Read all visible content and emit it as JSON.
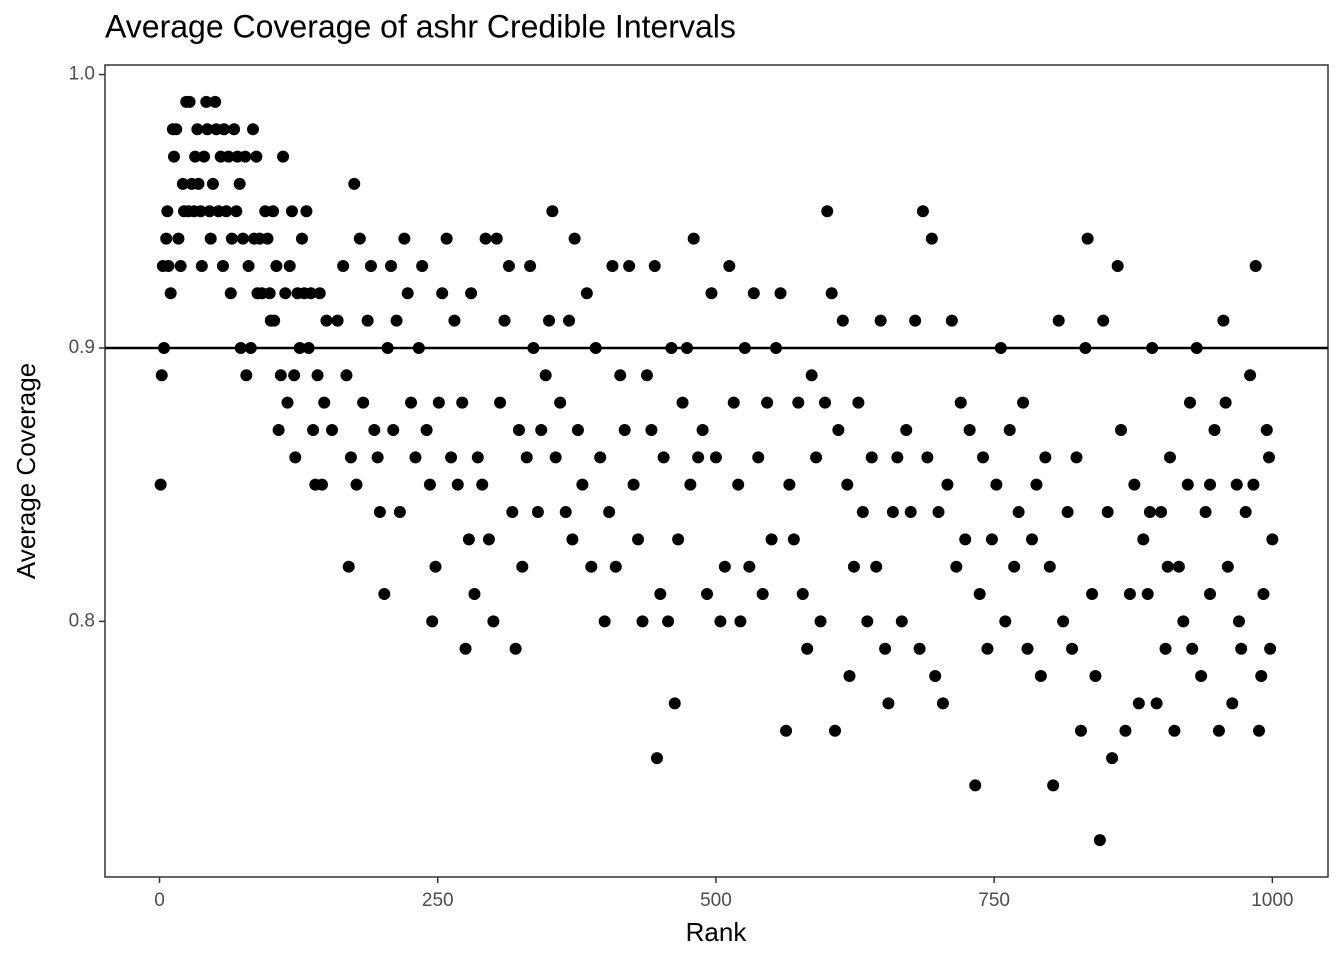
{
  "chart_data": {
    "type": "scatter",
    "title": "Average Coverage of ashr Credible Intervals",
    "x_label": "Rank",
    "y_label": "Average Coverage",
    "color": "#000000",
    "hline": 0.9,
    "xlim": [
      -49,
      1050
    ],
    "ylim": [
      0.7065,
      1.0035
    ],
    "xticks": [
      0,
      250,
      500,
      750,
      1000
    ],
    "yticks": [
      0.8,
      0.9,
      {
        "value": 1,
        "label": "1.0"
      }
    ],
    "x": [
      1,
      2,
      3,
      4,
      6,
      7,
      8,
      10,
      12,
      13,
      15,
      17,
      19,
      21,
      22,
      24,
      26,
      27,
      29,
      31,
      32,
      34,
      35,
      37,
      38,
      40,
      42,
      43,
      45,
      46,
      48,
      50,
      51,
      53,
      55,
      57,
      58,
      60,
      62,
      64,
      65,
      67,
      69,
      70,
      72,
      73,
      75,
      77,
      78,
      80,
      82,
      84,
      85,
      87,
      88,
      90,
      92,
      95,
      97,
      99,
      100,
      102,
      103,
      105,
      107,
      109,
      111,
      113,
      115,
      117,
      119,
      121,
      122,
      124,
      126,
      128,
      130,
      132,
      134,
      136,
      138,
      140,
      142,
      144,
      146,
      148,
      150,
      155,
      160,
      165,
      168,
      170,
      172,
      175,
      177,
      180,
      183,
      187,
      190,
      193,
      196,
      198,
      202,
      205,
      208,
      210,
      213,
      216,
      220,
      223,
      226,
      230,
      233,
      236,
      240,
      243,
      245,
      248,
      251,
      254,
      258,
      262,
      265,
      268,
      272,
      275,
      278,
      280,
      283,
      286,
      290,
      293,
      296,
      300,
      303,
      306,
      310,
      314,
      317,
      320,
      323,
      326,
      330,
      333,
      336,
      340,
      343,
      347,
      350,
      353,
      356,
      360,
      365,
      368,
      371,
      373,
      376,
      380,
      384,
      388,
      392,
      396,
      400,
      404,
      407,
      410,
      414,
      418,
      422,
      426,
      430,
      434,
      438,
      442,
      445,
      447,
      450,
      453,
      457,
      460,
      463,
      466,
      470,
      474,
      477,
      480,
      484,
      488,
      492,
      496,
      500,
      504,
      508,
      512,
      516,
      520,
      522,
      526,
      530,
      534,
      538,
      542,
      546,
      550,
      554,
      558,
      563,
      566,
      570,
      574,
      578,
      582,
      586,
      590,
      594,
      598,
      600,
      604,
      607,
      610,
      614,
      618,
      620,
      624,
      628,
      632,
      636,
      640,
      644,
      648,
      652,
      655,
      659,
      663,
      667,
      671,
      675,
      679,
      683,
      686,
      690,
      694,
      697,
      700,
      704,
      708,
      712,
      716,
      720,
      724,
      728,
      733,
      737,
      740,
      744,
      748,
      752,
      756,
      760,
      764,
      768,
      772,
      776,
      780,
      784,
      788,
      792,
      796,
      800,
      803,
      808,
      812,
      816,
      820,
      824,
      828,
      832,
      834,
      838,
      841,
      845,
      848,
      852,
      856,
      861,
      864,
      868,
      872,
      876,
      880,
      884,
      888,
      892,
      896,
      900,
      904,
      908,
      912,
      916,
      920,
      924,
      928,
      932,
      936,
      940,
      944,
      948,
      952,
      956,
      960,
      964,
      968,
      972,
      976,
      980,
      985,
      988,
      992,
      995,
      998,
      1000,
      997,
      990,
      983,
      970,
      958,
      944,
      926,
      906,
      890
    ],
    "values": [
      0.85,
      0.89,
      0.93,
      0.9,
      0.94,
      0.95,
      0.93,
      0.92,
      0.98,
      0.97,
      0.98,
      0.94,
      0.93,
      0.96,
      0.95,
      0.99,
      0.95,
      0.99,
      0.96,
      0.95,
      0.97,
      0.98,
      0.96,
      0.95,
      0.93,
      0.97,
      0.99,
      0.98,
      0.95,
      0.94,
      0.96,
      0.99,
      0.98,
      0.95,
      0.97,
      0.93,
      0.98,
      0.95,
      0.97,
      0.92,
      0.94,
      0.98,
      0.95,
      0.97,
      0.96,
      0.9,
      0.94,
      0.97,
      0.89,
      0.93,
      0.9,
      0.98,
      0.94,
      0.97,
      0.92,
      0.94,
      0.92,
      0.95,
      0.94,
      0.92,
      0.91,
      0.95,
      0.91,
      0.93,
      0.87,
      0.89,
      0.97,
      0.92,
      0.88,
      0.93,
      0.95,
      0.89,
      0.86,
      0.92,
      0.9,
      0.94,
      0.92,
      0.95,
      0.9,
      0.92,
      0.87,
      0.85,
      0.89,
      0.92,
      0.85,
      0.88,
      0.91,
      0.87,
      0.91,
      0.93,
      0.89,
      0.82,
      0.86,
      0.96,
      0.85,
      0.94,
      0.88,
      0.91,
      0.93,
      0.87,
      0.86,
      0.84,
      0.81,
      0.9,
      0.93,
      0.87,
      0.91,
      0.84,
      0.94,
      0.92,
      0.88,
      0.86,
      0.9,
      0.93,
      0.87,
      0.85,
      0.8,
      0.82,
      0.88,
      0.92,
      0.94,
      0.86,
      0.91,
      0.85,
      0.88,
      0.79,
      0.83,
      0.92,
      0.81,
      0.86,
      0.85,
      0.94,
      0.83,
      0.8,
      0.94,
      0.88,
      0.91,
      0.93,
      0.84,
      0.79,
      0.87,
      0.82,
      0.86,
      0.93,
      0.9,
      0.84,
      0.87,
      0.89,
      0.91,
      0.95,
      0.86,
      0.88,
      0.84,
      0.91,
      0.83,
      0.94,
      0.87,
      0.85,
      0.92,
      0.82,
      0.9,
      0.86,
      0.8,
      0.84,
      0.93,
      0.82,
      0.89,
      0.87,
      0.93,
      0.85,
      0.83,
      0.8,
      0.89,
      0.87,
      0.93,
      0.75,
      0.81,
      0.86,
      0.8,
      0.9,
      0.77,
      0.83,
      0.88,
      0.9,
      0.85,
      0.94,
      0.86,
      0.87,
      0.81,
      0.92,
      0.86,
      0.8,
      0.82,
      0.93,
      0.88,
      0.85,
      0.8,
      0.9,
      0.82,
      0.92,
      0.86,
      0.81,
      0.88,
      0.83,
      0.9,
      0.92,
      0.76,
      0.85,
      0.83,
      0.88,
      0.81,
      0.79,
      0.89,
      0.86,
      0.8,
      0.88,
      0.95,
      0.92,
      0.76,
      0.87,
      0.91,
      0.85,
      0.78,
      0.82,
      0.88,
      0.84,
      0.8,
      0.86,
      0.82,
      0.91,
      0.79,
      0.77,
      0.84,
      0.86,
      0.8,
      0.87,
      0.84,
      0.91,
      0.79,
      0.95,
      0.86,
      0.94,
      0.78,
      0.84,
      0.77,
      0.85,
      0.91,
      0.82,
      0.88,
      0.83,
      0.87,
      0.74,
      0.81,
      0.86,
      0.79,
      0.83,
      0.85,
      0.9,
      0.8,
      0.87,
      0.82,
      0.84,
      0.88,
      0.79,
      0.83,
      0.85,
      0.78,
      0.86,
      0.82,
      0.74,
      0.91,
      0.8,
      0.84,
      0.79,
      0.86,
      0.76,
      0.9,
      0.94,
      0.81,
      0.78,
      0.72,
      0.91,
      0.84,
      0.75,
      0.93,
      0.87,
      0.76,
      0.81,
      0.85,
      0.77,
      0.83,
      0.81,
      0.9,
      0.77,
      0.84,
      0.79,
      0.86,
      0.76,
      0.82,
      0.8,
      0.85,
      0.79,
      0.9,
      0.78,
      0.84,
      0.81,
      0.87,
      0.76,
      0.91,
      0.82,
      0.77,
      0.85,
      0.79,
      0.84,
      0.89,
      0.93,
      0.76,
      0.81,
      0.87,
      0.79,
      0.83,
      0.86,
      0.78,
      0.85,
      0.8,
      0.88,
      0.85,
      0.88,
      0.82,
      0.84
    ]
  }
}
